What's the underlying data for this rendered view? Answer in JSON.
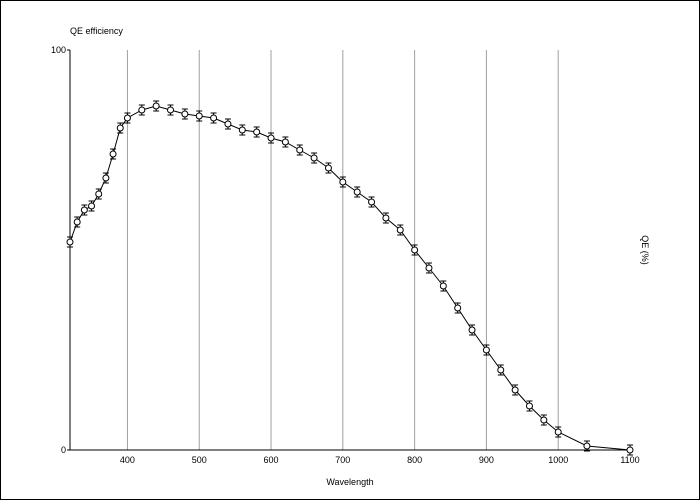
{
  "chart_data": {
    "type": "line",
    "title": "QE efficiency",
    "xlabel": "Wavelength",
    "ylabel": "QE (%)",
    "xlim": [
      320,
      1100
    ],
    "ylim": [
      0,
      100
    ],
    "xticks": [
      400,
      500,
      600,
      700,
      800,
      900,
      1000,
      1100
    ],
    "yticks": [
      0,
      100
    ],
    "grid": "vertical",
    "marker": "open-circle-with-error-bars",
    "x": [
      320,
      330,
      340,
      350,
      360,
      370,
      380,
      390,
      400,
      420,
      440,
      460,
      480,
      500,
      520,
      540,
      560,
      580,
      600,
      620,
      640,
      660,
      680,
      700,
      720,
      740,
      760,
      780,
      800,
      820,
      840,
      860,
      880,
      900,
      920,
      940,
      960,
      980,
      1000,
      1040,
      1100
    ],
    "y": [
      52,
      57,
      60,
      61,
      64,
      68,
      74,
      80.5,
      83,
      85,
      86,
      85,
      84,
      83.5,
      83,
      81.5,
      80,
      79.5,
      78,
      77,
      75,
      73,
      70.5,
      67,
      64.5,
      62,
      58,
      55,
      50,
      45.5,
      41,
      35.5,
      30,
      25,
      20,
      15,
      11,
      7.5,
      4.5,
      1,
      0
    ]
  }
}
